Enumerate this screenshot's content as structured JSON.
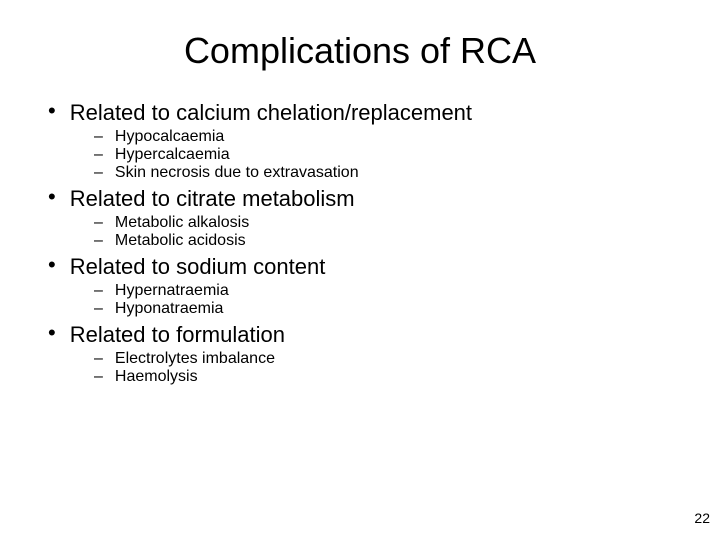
{
  "title": "Complications of RCA",
  "sections": [
    {
      "heading": "Related to calcium chelation/replacement",
      "items": [
        "Hypocalcaemia",
        "Hypercalcaemia",
        "Skin necrosis due to extravasation"
      ]
    },
    {
      "heading": "Related to citrate metabolism",
      "items": [
        "Metabolic alkalosis",
        "Metabolic acidosis"
      ]
    },
    {
      "heading": "Related to sodium content",
      "items": [
        "Hypernatraemia",
        "Hyponatraemia"
      ]
    },
    {
      "heading": "Related to formulation",
      "items": [
        "Electrolytes imbalance",
        "Haemolysis"
      ]
    }
  ],
  "page_number": "22",
  "colors": {
    "background": "#ffffff",
    "text": "#000000"
  },
  "typography": {
    "title_fontsize": 36,
    "l1_fontsize": 22,
    "l2_fontsize": 16,
    "font_family": "Arial"
  }
}
